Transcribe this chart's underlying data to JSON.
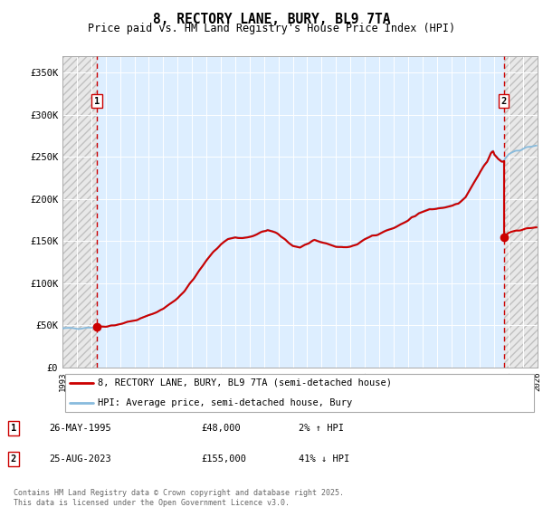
{
  "title": "8, RECTORY LANE, BURY, BL9 7TA",
  "subtitle": "Price paid vs. HM Land Registry's House Price Index (HPI)",
  "sale1_year": 1995.38,
  "sale1_price": 48000,
  "sale2_year": 2023.65,
  "sale2_price": 155000,
  "sale1_label": "1",
  "sale2_label": "2",
  "sale1_date": "26-MAY-1995",
  "sale1_amount": "£48,000",
  "sale1_hpi": "2% ↑ HPI",
  "sale2_date": "25-AUG-2023",
  "sale2_amount": "£155,000",
  "sale2_hpi": "41% ↓ HPI",
  "line_color_property": "#cc0000",
  "line_color_hpi": "#88bbdd",
  "marker_color": "#cc0000",
  "vline_color": "#cc0000",
  "bg_plot": "#ddeeff",
  "grid_color": "#ffffff",
  "ylim": [
    0,
    370000
  ],
  "xlim_left": 1993.0,
  "xlim_right": 2026.0,
  "yticks": [
    0,
    50000,
    100000,
    150000,
    200000,
    250000,
    300000,
    350000
  ],
  "ytick_labels": [
    "£0",
    "£50K",
    "£100K",
    "£150K",
    "£200K",
    "£250K",
    "£300K",
    "£350K"
  ],
  "legend_entry1": "8, RECTORY LANE, BURY, BL9 7TA (semi-detached house)",
  "legend_entry2": "HPI: Average price, semi-detached house, Bury",
  "footnote": "Contains HM Land Registry data © Crown copyright and database right 2025.\nThis data is licensed under the Open Government Licence v3.0."
}
